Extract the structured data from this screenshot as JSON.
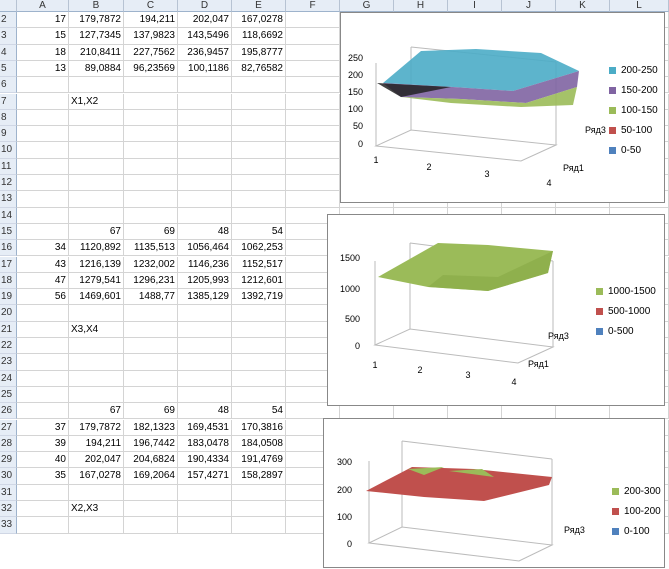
{
  "columns": [
    "A",
    "B",
    "C",
    "D",
    "E",
    "F",
    "G",
    "H",
    "I",
    "J",
    "K",
    "L"
  ],
  "rows": [
    {
      "n": "2",
      "c": [
        "17",
        "179,7872",
        "194,211",
        "202,047",
        "167,0278"
      ]
    },
    {
      "n": "3",
      "c": [
        "15",
        "127,7345",
        "137,9823",
        "143,5496",
        "118,6692"
      ]
    },
    {
      "n": "4",
      "c": [
        "18",
        "210,8411",
        "227,7562",
        "236,9457",
        "195,8777"
      ]
    },
    {
      "n": "5",
      "c": [
        "13",
        "89,0884",
        "96,23569",
        "100,1186",
        "82,76582"
      ]
    },
    {
      "n": "6",
      "c": [
        "",
        "",
        "",
        "",
        ""
      ]
    },
    {
      "n": "7",
      "c": [
        "",
        "X1,X2",
        "",
        "",
        ""
      ]
    },
    {
      "n": "8",
      "c": [
        "",
        "",
        "",
        "",
        ""
      ]
    },
    {
      "n": "9",
      "c": [
        "",
        "",
        "",
        "",
        ""
      ]
    },
    {
      "n": "10",
      "c": [
        "",
        "",
        "",
        "",
        ""
      ]
    },
    {
      "n": "11",
      "c": [
        "",
        "",
        "",
        "",
        ""
      ]
    },
    {
      "n": "12",
      "c": [
        "",
        "",
        "",
        "",
        ""
      ]
    },
    {
      "n": "13",
      "c": [
        "",
        "",
        "",
        "",
        ""
      ]
    },
    {
      "n": "14",
      "c": [
        "",
        "",
        "",
        "",
        ""
      ]
    },
    {
      "n": "15",
      "c": [
        "",
        "67",
        "69",
        "48",
        "54"
      ]
    },
    {
      "n": "16",
      "c": [
        "34",
        "1120,892",
        "1135,513",
        "1056,464",
        "1062,253"
      ]
    },
    {
      "n": "17",
      "c": [
        "43",
        "1216,139",
        "1232,002",
        "1146,236",
        "1152,517"
      ]
    },
    {
      "n": "18",
      "c": [
        "47",
        "1279,541",
        "1296,231",
        "1205,993",
        "1212,601"
      ]
    },
    {
      "n": "19",
      "c": [
        "56",
        "1469,601",
        "1488,77",
        "1385,129",
        "1392,719"
      ]
    },
    {
      "n": "20",
      "c": [
        "",
        "",
        "",
        "",
        ""
      ]
    },
    {
      "n": "21",
      "c": [
        "",
        "X3,X4",
        "",
        "",
        ""
      ]
    },
    {
      "n": "22",
      "c": [
        "",
        "",
        "",
        "",
        ""
      ]
    },
    {
      "n": "23",
      "c": [
        "",
        "",
        "",
        "",
        ""
      ]
    },
    {
      "n": "24",
      "c": [
        "",
        "",
        "",
        "",
        ""
      ]
    },
    {
      "n": "25",
      "c": [
        "",
        "",
        "",
        "",
        ""
      ]
    },
    {
      "n": "26",
      "c": [
        "",
        "67",
        "69",
        "48",
        "54"
      ]
    },
    {
      "n": "27",
      "c": [
        "37",
        "179,7872",
        "182,1323",
        "169,4531",
        "170,3816"
      ]
    },
    {
      "n": "28",
      "c": [
        "39",
        "194,211",
        "196,7442",
        "183,0478",
        "184,0508"
      ]
    },
    {
      "n": "29",
      "c": [
        "40",
        "202,047",
        "204,6824",
        "190,4334",
        "191,4769"
      ]
    },
    {
      "n": "30",
      "c": [
        "35",
        "167,0278",
        "169,2064",
        "157,4271",
        "158,2897"
      ]
    },
    {
      "n": "31",
      "c": [
        "",
        "",
        "",
        "",
        ""
      ]
    },
    {
      "n": "32",
      "c": [
        "",
        "X2,X3",
        "",
        "",
        ""
      ]
    },
    {
      "n": "33",
      "c": [
        "",
        "",
        "",
        "",
        ""
      ]
    }
  ],
  "charts": [
    {
      "z_ticks": [
        "250",
        "200",
        "150",
        "100",
        "50",
        "0"
      ],
      "x_ticks": [
        "1",
        "2",
        "3",
        "4"
      ],
      "depth_labels": [
        "Ряд3",
        "Ряд1"
      ],
      "legend": [
        {
          "label": "200-250",
          "color": "#4bacc6"
        },
        {
          "label": "150-200",
          "color": "#8064a2"
        },
        {
          "label": "100-150",
          "color": "#9bbb59"
        },
        {
          "label": "50-100",
          "color": "#c0504d"
        },
        {
          "label": "0-50",
          "color": "#4f81bd"
        }
      ]
    },
    {
      "z_ticks": [
        "1500",
        "1000",
        "500",
        "0"
      ],
      "x_ticks": [
        "1",
        "2",
        "3",
        "4"
      ],
      "depth_labels": [
        "Ряд3",
        "Ряд1"
      ],
      "legend": [
        {
          "label": "1000-1500",
          "color": "#9bbb59"
        },
        {
          "label": "500-1000",
          "color": "#c0504d"
        },
        {
          "label": "0-500",
          "color": "#4f81bd"
        }
      ]
    },
    {
      "z_ticks": [
        "300",
        "200",
        "100",
        "0"
      ],
      "x_ticks": [],
      "depth_labels": [
        "Ряд3"
      ],
      "legend": [
        {
          "label": "200-300",
          "color": "#9bbb59"
        },
        {
          "label": "100-200",
          "color": "#c0504d"
        },
        {
          "label": "0-100",
          "color": "#4f81bd"
        }
      ]
    }
  ]
}
